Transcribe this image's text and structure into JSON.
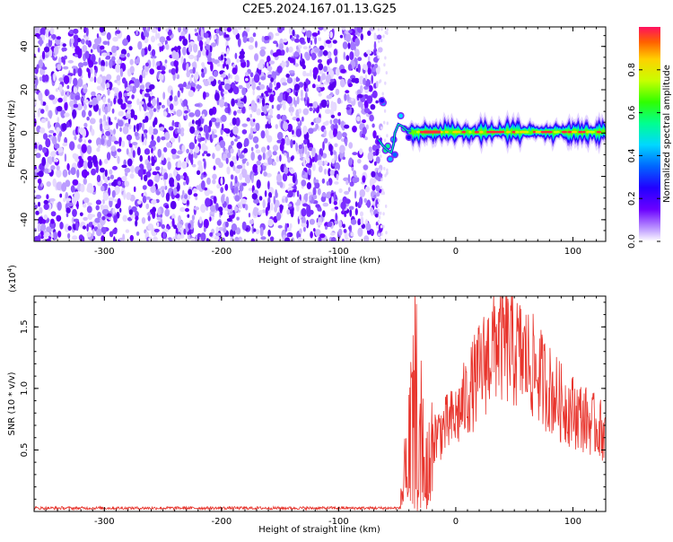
{
  "figure": {
    "title": "C2E5.2024.167.01.13.G25"
  },
  "chart_data": [
    {
      "type": "heatmap",
      "xlabel": "Height of straight line (km)",
      "ylabel": "Frequency (Hz)",
      "xlim": [
        -360,
        128
      ],
      "ylim": [
        -50,
        49
      ],
      "x_ticks": [
        -300,
        -200,
        -100,
        0,
        100
      ],
      "y_ticks": [
        -40,
        -20,
        0,
        20,
        40
      ],
      "colorbar": {
        "label": "Normalized spectral amplitude",
        "range": [
          0,
          1
        ],
        "ticks": [
          "0.0",
          "0.2",
          "0.4",
          "0.6",
          "0.8"
        ],
        "colors": [
          "#ffffff",
          "#9f7bff",
          "#6a00ff",
          "#2200ff",
          "#0066ff",
          "#00d8ff",
          "#00ff90",
          "#30ff00",
          "#c8ff00",
          "#ffd000",
          "#ff6000",
          "#ff1060"
        ]
      },
      "noise_region_km": [
        -360,
        -67
      ],
      "signal_track_km": [
        -40,
        128
      ],
      "signal_track_freq_hz": 0.5
    },
    {
      "type": "line",
      "xlabel": "Height of straight line (km)",
      "ylabel": "SNR (10 * v/v)",
      "y_multiplier": "(x10",
      "y_multiplier_exp": "4",
      "y_multiplier_close": ")",
      "xlim": [
        -360,
        128
      ],
      "ylim": [
        0,
        1.75
      ],
      "x_ticks": [
        -300,
        -200,
        -100,
        0,
        100
      ],
      "y_ticks": [
        "0.5",
        "1.0",
        "1.5"
      ],
      "y_tick_values": [
        0.5,
        1.0,
        1.5
      ],
      "color": "#e8342c",
      "series_summary": [
        {
          "x": -360,
          "y": 0.02
        },
        {
          "x": -50,
          "y": 0.02
        },
        {
          "x": -45,
          "y": 0.3
        },
        {
          "x": -35,
          "y": 1.72
        },
        {
          "x": -25,
          "y": 0.7
        },
        {
          "x": 0,
          "y": 0.95
        },
        {
          "x": 35,
          "y": 1.75
        },
        {
          "x": 60,
          "y": 1.55
        },
        {
          "x": 90,
          "y": 1.1
        },
        {
          "x": 128,
          "y": 0.8
        }
      ]
    }
  ]
}
